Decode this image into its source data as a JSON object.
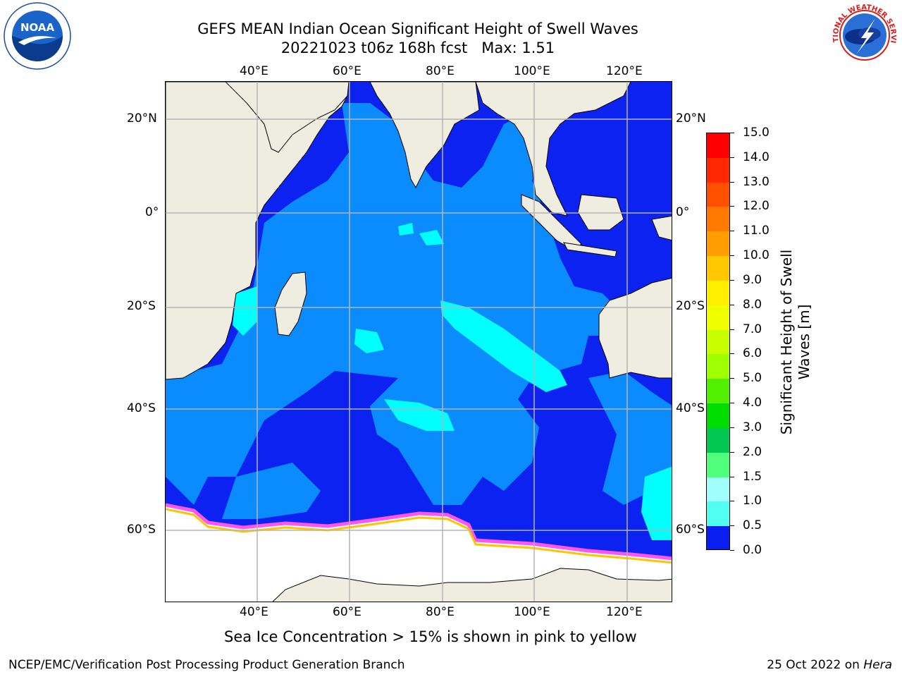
{
  "title": {
    "line1": "GEFS MEAN Indian Ocean Significant Height of Swell Waves",
    "line2": "20221023 t06z 168h fcst   Max: 1.51"
  },
  "axes": {
    "lon_top": [
      "40°E",
      "60°E",
      "80°E",
      "100°E",
      "120°E"
    ],
    "lon_bottom": [
      "40°E",
      "60°E",
      "80°E",
      "100°E",
      "120°E"
    ],
    "lat_left": [
      "20°N",
      "0°",
      "20°S",
      "40°S",
      "60°S"
    ],
    "lat_right": [
      "20°N",
      "0°",
      "20°S",
      "40°S",
      "60°S"
    ]
  },
  "colorbar": {
    "title": "Significant Height of Swell\nWaves [m]",
    "ticks": [
      "15.0",
      "14.0",
      "13.0",
      "12.0",
      "11.0",
      "10.0",
      "9.0",
      "8.0",
      "7.0",
      "6.0",
      "5.0",
      "4.0",
      "3.0",
      "2.0",
      "1.5",
      "1.0",
      "0.5",
      "0.0"
    ],
    "colors": [
      "#ff0000",
      "#ff2800",
      "#ff5000",
      "#ff7800",
      "#ff9e00",
      "#ffc800",
      "#ffee00",
      "#f0ff00",
      "#c8ff00",
      "#a0ff00",
      "#50f000",
      "#00dc00",
      "#00c850",
      "#50ff7c",
      "#a0fffa",
      "#50fff0",
      "#00ffff",
      "#0a8cff",
      "#0a1ef0"
    ]
  },
  "legend_colors": {
    "land": "#eeede0",
    "ice": "#ffffff",
    "swell_low": "#0b22f0",
    "swell_mid": "#0a8cff",
    "swell_high": "#00ffff"
  },
  "caption": "Sea Ice Concentration > 15% is shown in pink to yellow",
  "footer": {
    "left": "NCEP/EMC/Verification Post Processing Product Generation Branch",
    "right_prefix": "25 Oct 2022 on ",
    "right_host": "Hera"
  },
  "logos": {
    "noaa": "NOAA",
    "nws": "NATIONAL WEATHER SERVICE"
  }
}
